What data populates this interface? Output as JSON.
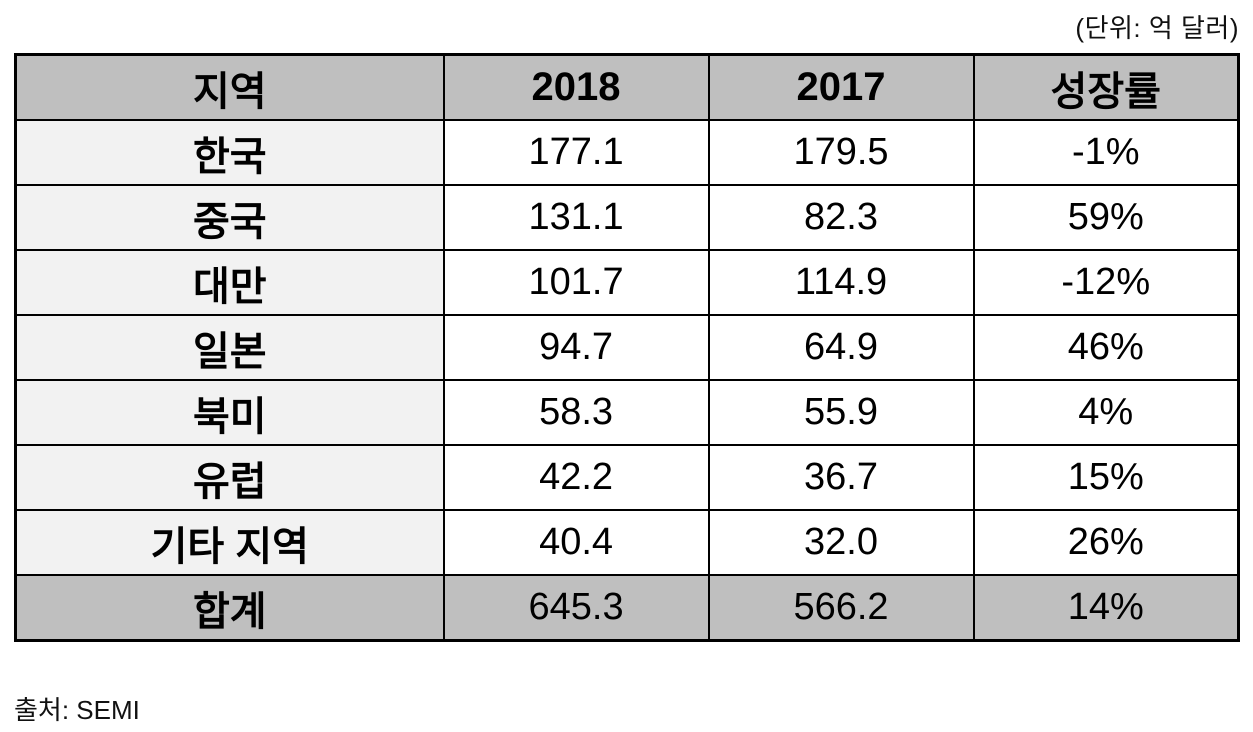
{
  "unit_note": "(단위:  억 달러)",
  "source_note": "출처: SEMI",
  "colors": {
    "header_bg": "#bfbfbf",
    "total_bg": "#bfbfbf",
    "region_col_bg": "#f2f2f2",
    "border": "#000000",
    "text": "#000000"
  },
  "chart_data": {
    "type": "table",
    "title": "",
    "unit": "억 달러",
    "source": "SEMI",
    "headers": [
      "지역",
      "2018",
      "2017",
      "성장률"
    ],
    "rows": [
      {
        "region": "한국",
        "y2018": "177.1",
        "y2017": "179.5",
        "growth": "-1%"
      },
      {
        "region": "중국",
        "y2018": "131.1",
        "y2017": "82.3",
        "growth": "59%"
      },
      {
        "region": "대만",
        "y2018": "101.7",
        "y2017": "114.9",
        "growth": "-12%"
      },
      {
        "region": "일본",
        "y2018": "94.7",
        "y2017": "64.9",
        "growth": "46%"
      },
      {
        "region": "북미",
        "y2018": "58.3",
        "y2017": "55.9",
        "growth": "4%"
      },
      {
        "region": "유럽",
        "y2018": "42.2",
        "y2017": "36.7",
        "growth": "15%"
      },
      {
        "region": "기타 지역",
        "y2018": "40.4",
        "y2017": "32.0",
        "growth": "26%"
      }
    ],
    "total": {
      "region": "합계",
      "y2018": "645.3",
      "y2017": "566.2",
      "growth": "14%"
    }
  }
}
